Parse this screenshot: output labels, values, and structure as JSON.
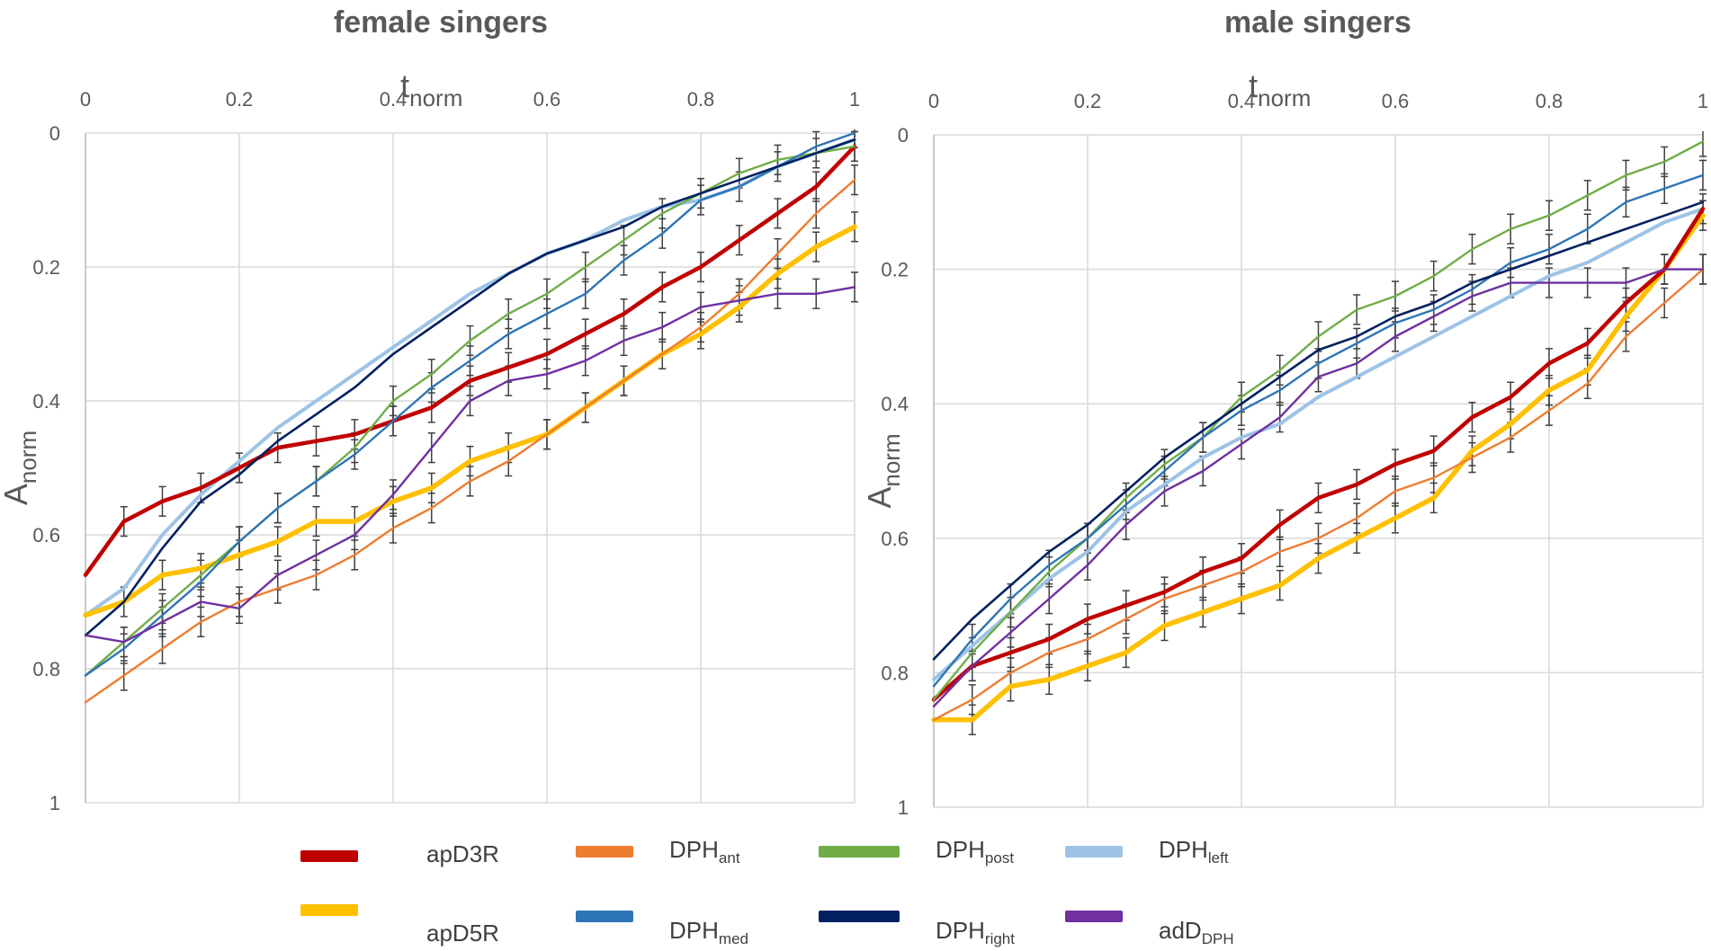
{
  "chart_data": [
    {
      "type": "line",
      "title": "female singers",
      "xlabel": "t",
      "xlabel_sub": "norm",
      "ylabel": "A",
      "ylabel_sub": "norm",
      "xlim": [
        0,
        1
      ],
      "ylim": [
        0,
        1
      ],
      "y_inverted": true,
      "x_axis_position": "top",
      "x_ticks": [
        "0",
        "0.2",
        "0.4",
        "0.6",
        "0.8",
        "1"
      ],
      "y_ticks": [
        "0",
        "0.2",
        "0.4",
        "0.6",
        "0.8",
        "1"
      ],
      "grid": true,
      "error_bars": true,
      "series": [
        {
          "key": "dph_ant",
          "x": [
            0,
            0.05,
            0.1,
            0.15,
            0.2,
            0.25,
            0.3,
            0.35,
            0.4,
            0.45,
            0.5,
            0.55,
            0.6,
            0.65,
            0.7,
            0.75,
            0.8,
            0.85,
            0.9,
            0.95,
            1
          ],
          "values": [
            0.85,
            0.81,
            0.77,
            0.73,
            0.7,
            0.68,
            0.66,
            0.63,
            0.59,
            0.56,
            0.52,
            0.49,
            0.45,
            0.41,
            0.37,
            0.33,
            0.29,
            0.24,
            0.18,
            0.12,
            0.07
          ]
        },
        {
          "key": "adD_DPH",
          "x": [
            0,
            0.05,
            0.1,
            0.15,
            0.2,
            0.25,
            0.3,
            0.35,
            0.4,
            0.45,
            0.5,
            0.55,
            0.6,
            0.65,
            0.7,
            0.75,
            0.8,
            0.85,
            0.9,
            0.95,
            1
          ],
          "values": [
            0.75,
            0.76,
            0.73,
            0.7,
            0.71,
            0.66,
            0.63,
            0.6,
            0.54,
            0.47,
            0.4,
            0.37,
            0.36,
            0.34,
            0.31,
            0.29,
            0.26,
            0.25,
            0.24,
            0.24,
            0.23
          ]
        },
        {
          "key": "apD5R",
          "x": [
            0,
            0.05,
            0.1,
            0.15,
            0.2,
            0.25,
            0.3,
            0.35,
            0.4,
            0.45,
            0.5,
            0.55,
            0.6,
            0.65,
            0.7,
            0.75,
            0.8,
            0.85,
            0.9,
            0.95,
            1
          ],
          "values": [
            0.72,
            0.7,
            0.66,
            0.65,
            0.63,
            0.61,
            0.58,
            0.58,
            0.55,
            0.53,
            0.49,
            0.47,
            0.45,
            0.41,
            0.37,
            0.33,
            0.3,
            0.26,
            0.21,
            0.17,
            0.14
          ]
        },
        {
          "key": "apD3R",
          "x": [
            0,
            0.05,
            0.1,
            0.15,
            0.2,
            0.25,
            0.3,
            0.35,
            0.4,
            0.45,
            0.5,
            0.55,
            0.6,
            0.65,
            0.7,
            0.75,
            0.8,
            0.85,
            0.9,
            0.95,
            1
          ],
          "values": [
            0.66,
            0.58,
            0.55,
            0.53,
            0.5,
            0.47,
            0.46,
            0.45,
            0.43,
            0.41,
            0.37,
            0.35,
            0.33,
            0.3,
            0.27,
            0.23,
            0.2,
            0.16,
            0.12,
            0.08,
            0.02
          ]
        },
        {
          "key": "dph_med",
          "x": [
            0,
            0.05,
            0.1,
            0.15,
            0.2,
            0.25,
            0.3,
            0.35,
            0.4,
            0.45,
            0.5,
            0.55,
            0.6,
            0.65,
            0.7,
            0.75,
            0.8,
            0.85,
            0.9,
            0.95,
            1
          ],
          "values": [
            0.81,
            0.77,
            0.72,
            0.67,
            0.61,
            0.56,
            0.52,
            0.48,
            0.43,
            0.38,
            0.34,
            0.3,
            0.27,
            0.24,
            0.19,
            0.15,
            0.1,
            0.08,
            0.05,
            0.02,
            0.0
          ]
        },
        {
          "key": "dph_post",
          "x": [
            0,
            0.05,
            0.1,
            0.15,
            0.2,
            0.25,
            0.3,
            0.35,
            0.4,
            0.45,
            0.5,
            0.55,
            0.6,
            0.65,
            0.7,
            0.75,
            0.8,
            0.85,
            0.9,
            0.95,
            1
          ],
          "values": [
            0.81,
            0.76,
            0.71,
            0.66,
            0.61,
            0.56,
            0.52,
            0.47,
            0.4,
            0.36,
            0.31,
            0.27,
            0.24,
            0.2,
            0.16,
            0.12,
            0.09,
            0.06,
            0.04,
            0.03,
            0.02
          ]
        },
        {
          "key": "dph_left",
          "x": [
            0,
            0.05,
            0.1,
            0.15,
            0.2,
            0.25,
            0.3,
            0.35,
            0.4,
            0.45,
            0.5,
            0.55,
            0.6,
            0.65,
            0.7,
            0.75,
            0.8,
            0.85,
            0.9,
            0.95,
            1
          ],
          "values": [
            0.72,
            0.68,
            0.6,
            0.54,
            0.49,
            0.44,
            0.4,
            0.36,
            0.32,
            0.28,
            0.24,
            0.21,
            0.18,
            0.16,
            0.13,
            0.11,
            0.1,
            0.08,
            0.05,
            0.03,
            0.01
          ]
        },
        {
          "key": "dph_right",
          "x": [
            0,
            0.05,
            0.1,
            0.15,
            0.2,
            0.25,
            0.3,
            0.35,
            0.4,
            0.45,
            0.5,
            0.55,
            0.6,
            0.65,
            0.7,
            0.75,
            0.8,
            0.85,
            0.9,
            0.95,
            1
          ],
          "values": [
            0.75,
            0.7,
            0.62,
            0.55,
            0.51,
            0.46,
            0.42,
            0.38,
            0.33,
            0.29,
            0.25,
            0.21,
            0.18,
            0.16,
            0.14,
            0.11,
            0.09,
            0.07,
            0.05,
            0.03,
            0.01
          ]
        }
      ]
    },
    {
      "type": "line",
      "title": "male singers",
      "xlabel": "t",
      "xlabel_sub": "norm",
      "ylabel": "A",
      "ylabel_sub": "norm",
      "xlim": [
        0,
        1
      ],
      "ylim": [
        0,
        1
      ],
      "y_inverted": true,
      "x_axis_position": "top",
      "x_ticks": [
        "0",
        "0.2",
        "0.4",
        "0.6",
        "0.8",
        "1"
      ],
      "y_ticks": [
        "0",
        "0.2",
        "0.4",
        "0.6",
        "0.8",
        "1"
      ],
      "grid": true,
      "error_bars": true,
      "series": [
        {
          "key": "dph_ant",
          "x": [
            0,
            0.05,
            0.1,
            0.15,
            0.2,
            0.25,
            0.3,
            0.35,
            0.4,
            0.45,
            0.5,
            0.55,
            0.6,
            0.65,
            0.7,
            0.75,
            0.8,
            0.85,
            0.9,
            0.95,
            1
          ],
          "values": [
            0.87,
            0.84,
            0.8,
            0.77,
            0.75,
            0.72,
            0.69,
            0.67,
            0.65,
            0.62,
            0.6,
            0.57,
            0.53,
            0.51,
            0.48,
            0.45,
            0.41,
            0.37,
            0.3,
            0.25,
            0.2
          ]
        },
        {
          "key": "apD5R",
          "x": [
            0,
            0.05,
            0.1,
            0.15,
            0.2,
            0.25,
            0.3,
            0.35,
            0.4,
            0.45,
            0.5,
            0.55,
            0.6,
            0.65,
            0.7,
            0.75,
            0.8,
            0.85,
            0.9,
            0.95,
            1
          ],
          "values": [
            0.87,
            0.87,
            0.82,
            0.81,
            0.79,
            0.77,
            0.73,
            0.71,
            0.69,
            0.67,
            0.63,
            0.6,
            0.57,
            0.54,
            0.47,
            0.43,
            0.38,
            0.35,
            0.27,
            0.2,
            0.12
          ]
        },
        {
          "key": "apD3R",
          "x": [
            0,
            0.05,
            0.1,
            0.15,
            0.2,
            0.25,
            0.3,
            0.35,
            0.4,
            0.45,
            0.5,
            0.55,
            0.6,
            0.65,
            0.7,
            0.75,
            0.8,
            0.85,
            0.9,
            0.95,
            1
          ],
          "values": [
            0.84,
            0.79,
            0.77,
            0.75,
            0.72,
            0.7,
            0.68,
            0.65,
            0.63,
            0.58,
            0.54,
            0.52,
            0.49,
            0.47,
            0.42,
            0.39,
            0.34,
            0.31,
            0.25,
            0.2,
            0.11
          ]
        },
        {
          "key": "adD_DPH",
          "x": [
            0,
            0.05,
            0.1,
            0.15,
            0.2,
            0.25,
            0.3,
            0.35,
            0.4,
            0.45,
            0.5,
            0.55,
            0.6,
            0.65,
            0.7,
            0.75,
            0.8,
            0.85,
            0.9,
            0.95,
            1
          ],
          "values": [
            0.85,
            0.79,
            0.74,
            0.69,
            0.64,
            0.58,
            0.53,
            0.5,
            0.46,
            0.42,
            0.36,
            0.34,
            0.3,
            0.27,
            0.24,
            0.22,
            0.22,
            0.22,
            0.22,
            0.2,
            0.2
          ]
        },
        {
          "key": "dph_left",
          "x": [
            0,
            0.05,
            0.1,
            0.15,
            0.2,
            0.25,
            0.3,
            0.35,
            0.4,
            0.45,
            0.5,
            0.55,
            0.6,
            0.65,
            0.7,
            0.75,
            0.8,
            0.85,
            0.9,
            0.95,
            1
          ],
          "values": [
            0.81,
            0.76,
            0.71,
            0.66,
            0.62,
            0.56,
            0.52,
            0.48,
            0.45,
            0.43,
            0.39,
            0.36,
            0.33,
            0.3,
            0.27,
            0.24,
            0.21,
            0.19,
            0.16,
            0.13,
            0.11
          ]
        },
        {
          "key": "dph_post",
          "x": [
            0,
            0.05,
            0.1,
            0.15,
            0.2,
            0.25,
            0.3,
            0.35,
            0.4,
            0.45,
            0.5,
            0.55,
            0.6,
            0.65,
            0.7,
            0.75,
            0.8,
            0.85,
            0.9,
            0.95,
            1
          ],
          "values": [
            0.84,
            0.77,
            0.71,
            0.65,
            0.6,
            0.54,
            0.49,
            0.45,
            0.39,
            0.35,
            0.3,
            0.26,
            0.24,
            0.21,
            0.17,
            0.14,
            0.12,
            0.09,
            0.06,
            0.04,
            0.01
          ]
        },
        {
          "key": "dph_med",
          "x": [
            0,
            0.05,
            0.1,
            0.15,
            0.2,
            0.25,
            0.3,
            0.35,
            0.4,
            0.45,
            0.5,
            0.55,
            0.6,
            0.65,
            0.7,
            0.75,
            0.8,
            0.85,
            0.9,
            0.95,
            1
          ],
          "values": [
            0.82,
            0.75,
            0.69,
            0.64,
            0.6,
            0.55,
            0.5,
            0.45,
            0.41,
            0.38,
            0.34,
            0.31,
            0.28,
            0.26,
            0.23,
            0.19,
            0.17,
            0.14,
            0.1,
            0.08,
            0.06
          ]
        },
        {
          "key": "dph_right",
          "x": [
            0,
            0.05,
            0.1,
            0.15,
            0.2,
            0.25,
            0.3,
            0.35,
            0.4,
            0.45,
            0.5,
            0.55,
            0.6,
            0.65,
            0.7,
            0.75,
            0.8,
            0.85,
            0.9,
            0.95,
            1
          ],
          "values": [
            0.78,
            0.72,
            0.67,
            0.62,
            0.58,
            0.53,
            0.48,
            0.44,
            0.4,
            0.36,
            0.32,
            0.3,
            0.27,
            0.25,
            0.22,
            0.2,
            0.18,
            0.16,
            0.14,
            0.12,
            0.1
          ]
        }
      ]
    }
  ],
  "legend": {
    "placement": "bottom",
    "items": [
      {
        "key": "apD3R",
        "label": "apD3R",
        "sub": "",
        "color": "#c00000"
      },
      {
        "key": "dph_ant",
        "label": "DPH",
        "sub": "ant",
        "color": "#ed7d31"
      },
      {
        "key": "dph_post",
        "label": "DPH",
        "sub": "post",
        "color": "#70ad47"
      },
      {
        "key": "dph_left",
        "label": "DPH",
        "sub": "left",
        "color": "#9dc3e6"
      },
      {
        "key": "apD5R",
        "label": "apD5R",
        "sub": "",
        "color": "#ffc000"
      },
      {
        "key": "dph_med",
        "label": "DPH",
        "sub": "med",
        "color": "#2e75b6"
      },
      {
        "key": "dph_right",
        "label": "DPH",
        "sub": "right",
        "color": "#002060"
      },
      {
        "key": "adD_DPH",
        "label": "adD",
        "sub": "DPH",
        "color": "#7030a0"
      }
    ]
  }
}
